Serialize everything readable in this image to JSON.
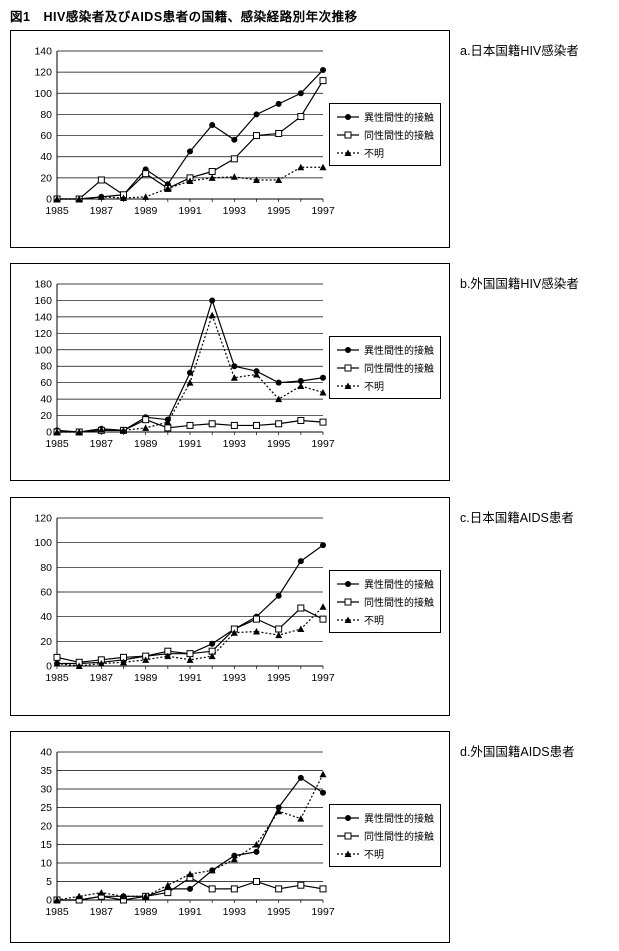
{
  "figure_title": "図1　HIV感染者及びAIDS患者の国籍、感染経路別年次推移",
  "colors": {
    "line": "#000000",
    "background": "#ffffff",
    "text": "#000000"
  },
  "chart_data": [
    {
      "type": "line",
      "title": "a.日本国籍HIV感染者",
      "x": [
        1985,
        1986,
        1987,
        1988,
        1989,
        1990,
        1991,
        1992,
        1993,
        1994,
        1995,
        1996,
        1997
      ],
      "x_tick_every": 2,
      "ylim": [
        0,
        140
      ],
      "ytick_step": 20,
      "grid": "horizontal",
      "legend_position": "right",
      "series": [
        {
          "name": "異性間性的接触",
          "marker": "circle-filled",
          "line": "solid",
          "values": [
            0,
            0,
            2,
            4,
            28,
            14,
            45,
            70,
            56,
            80,
            90,
            100,
            122
          ]
        },
        {
          "name": "同性間性的接触",
          "marker": "square-open",
          "line": "solid",
          "values": [
            0,
            0,
            18,
            4,
            24,
            10,
            20,
            26,
            38,
            60,
            62,
            78,
            112
          ]
        },
        {
          "name": "不明",
          "marker": "triangle-filled",
          "line": "dotted",
          "values": [
            0,
            0,
            2,
            1,
            2,
            10,
            17,
            20,
            21,
            18,
            18,
            30,
            30
          ]
        }
      ]
    },
    {
      "type": "line",
      "title": "b.外国国籍HIV感染者",
      "x": [
        1985,
        1986,
        1987,
        1988,
        1989,
        1990,
        1991,
        1992,
        1993,
        1994,
        1995,
        1996,
        1997
      ],
      "x_tick_every": 2,
      "ylim": [
        0,
        180
      ],
      "ytick_step": 20,
      "grid": "horizontal",
      "legend_position": "right",
      "series": [
        {
          "name": "異性間性的接触",
          "marker": "circle-filled",
          "line": "solid",
          "values": [
            2,
            0,
            4,
            2,
            18,
            15,
            72,
            160,
            80,
            74,
            60,
            62,
            66
          ]
        },
        {
          "name": "同性間性的接触",
          "marker": "square-open",
          "line": "solid",
          "values": [
            0,
            0,
            2,
            2,
            15,
            5,
            8,
            10,
            8,
            8,
            10,
            14,
            12
          ]
        },
        {
          "name": "不明",
          "marker": "triangle-filled",
          "line": "dotted",
          "values": [
            0,
            0,
            3,
            2,
            5,
            12,
            60,
            142,
            66,
            70,
            40,
            56,
            48
          ]
        }
      ]
    },
    {
      "type": "line",
      "title": "c.日本国籍AIDS患者",
      "x": [
        1985,
        1986,
        1987,
        1988,
        1989,
        1990,
        1991,
        1992,
        1993,
        1994,
        1995,
        1996,
        1997
      ],
      "x_tick_every": 2,
      "ylim": [
        0,
        120
      ],
      "ytick_step": 20,
      "grid": "horizontal",
      "legend_position": "right",
      "series": [
        {
          "name": "異性間性的接触",
          "marker": "circle-filled",
          "line": "solid",
          "values": [
            2,
            2,
            3,
            5,
            8,
            10,
            10,
            18,
            30,
            40,
            57,
            85,
            98
          ]
        },
        {
          "name": "同性間性的接触",
          "marker": "square-open",
          "line": "solid",
          "values": [
            7,
            3,
            5,
            7,
            8,
            12,
            10,
            12,
            30,
            38,
            30,
            47,
            38
          ]
        },
        {
          "name": "不明",
          "marker": "triangle-filled",
          "line": "dotted",
          "values": [
            2,
            0,
            2,
            3,
            5,
            8,
            5,
            8,
            27,
            28,
            25,
            30,
            48
          ]
        }
      ]
    },
    {
      "type": "line",
      "title": "d.外国国籍AIDS患者",
      "x": [
        1985,
        1986,
        1987,
        1988,
        1989,
        1990,
        1991,
        1992,
        1993,
        1994,
        1995,
        1996,
        1997
      ],
      "x_tick_every": 2,
      "ylim": [
        0,
        40
      ],
      "ytick_step": 5,
      "grid": "horizontal",
      "legend_position": "right",
      "series": [
        {
          "name": "異性間性的接触",
          "marker": "circle-filled",
          "line": "solid",
          "values": [
            0,
            0,
            1,
            1,
            1,
            3,
            3,
            8,
            12,
            13,
            25,
            33,
            29
          ]
        },
        {
          "name": "同性間性的接触",
          "marker": "square-open",
          "line": "solid",
          "values": [
            0,
            0,
            1,
            0,
            1,
            2,
            6,
            3,
            3,
            5,
            3,
            4,
            3
          ]
        },
        {
          "name": "不明",
          "marker": "triangle-filled",
          "line": "dotted",
          "values": [
            0,
            1,
            2,
            1,
            1,
            4,
            7,
            8,
            11,
            15,
            24,
            22,
            34
          ]
        }
      ]
    }
  ]
}
